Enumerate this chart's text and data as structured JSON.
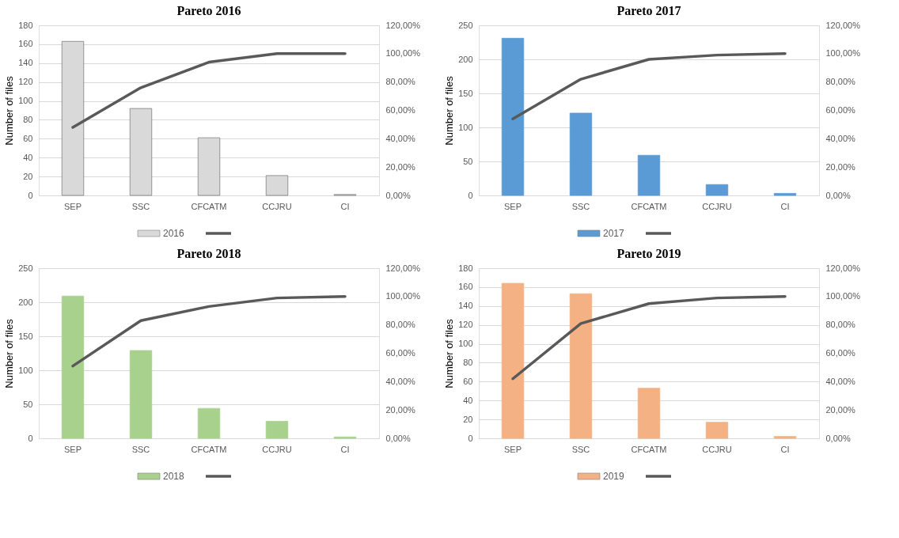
{
  "chart_data": [
    {
      "type": "bar",
      "title": "Pareto  2016",
      "ylabel": "Number of files",
      "categories": [
        "SEP",
        "SSC",
        "CFCATM",
        "CCJRU",
        "CI"
      ],
      "series": [
        {
          "name": "2016",
          "color": "#d9d9d9",
          "values": [
            163,
            92,
            61,
            21,
            1
          ]
        },
        {
          "type": "line",
          "axis": "y2",
          "color": "#595959",
          "values": [
            48,
            76,
            94,
            100,
            100
          ]
        }
      ],
      "ylim": [
        0,
        180
      ],
      "yticks": [
        0,
        20,
        40,
        60,
        80,
        100,
        120,
        140,
        160,
        180
      ],
      "y2lim": [
        0,
        120
      ],
      "y2ticks": [
        {
          "value": 0,
          "label": "0,00%"
        },
        {
          "value": 20,
          "label": "20,00%"
        },
        {
          "value": 40,
          "label": "40,00%"
        },
        {
          "value": 60,
          "label": "60,00%"
        },
        {
          "value": 80,
          "label": "80,00%"
        },
        {
          "value": 100,
          "label": "100,00%"
        },
        {
          "value": 120,
          "label": "120,00%"
        }
      ],
      "grid": "y",
      "legend": "bottom"
    },
    {
      "type": "bar",
      "title": "Pareto  2017",
      "ylabel": "Number of files",
      "categories": [
        "SEP",
        "SSC",
        "CFCATM",
        "CCJRU",
        "CI"
      ],
      "series": [
        {
          "name": "2017",
          "color": "#5b9bd5",
          "values": [
            231,
            121,
            59,
            16,
            3
          ]
        },
        {
          "type": "line",
          "axis": "y2",
          "color": "#595959",
          "values": [
            54,
            82,
            96,
            99,
            100
          ]
        }
      ],
      "ylim": [
        0,
        250
      ],
      "yticks": [
        0,
        50,
        100,
        150,
        200,
        250
      ],
      "y2lim": [
        0,
        120
      ],
      "y2ticks": [
        {
          "value": 0,
          "label": "0,00%"
        },
        {
          "value": 20,
          "label": "20,00%"
        },
        {
          "value": 40,
          "label": "40,00%"
        },
        {
          "value": 60,
          "label": "60,00%"
        },
        {
          "value": 80,
          "label": "80,00%"
        },
        {
          "value": 100,
          "label": "100,00%"
        },
        {
          "value": 120,
          "label": "120,00%"
        }
      ],
      "grid": "y",
      "legend": "bottom"
    },
    {
      "type": "bar",
      "title": "Pareto  2018",
      "ylabel": "Number of files",
      "categories": [
        "SEP",
        "SSC",
        "CFCATM",
        "CCJRU",
        "CI"
      ],
      "series": [
        {
          "name": "2018",
          "color": "#a9d18e",
          "values": [
            209,
            129,
            44,
            25,
            2
          ]
        },
        {
          "type": "line",
          "axis": "y2",
          "color": "#595959",
          "values": [
            51,
            83,
            93,
            99,
            100
          ]
        }
      ],
      "ylim": [
        0,
        250
      ],
      "yticks": [
        0,
        50,
        100,
        150,
        200,
        250
      ],
      "y2lim": [
        0,
        120
      ],
      "y2ticks": [
        {
          "value": 0,
          "label": "0,00%"
        },
        {
          "value": 20,
          "label": "20,00%"
        },
        {
          "value": 40,
          "label": "40,00%"
        },
        {
          "value": 60,
          "label": "60,00%"
        },
        {
          "value": 80,
          "label": "80,00%"
        },
        {
          "value": 100,
          "label": "100,00%"
        },
        {
          "value": 120,
          "label": "120,00%"
        }
      ],
      "grid": "y",
      "legend": "bottom"
    },
    {
      "type": "bar",
      "title": "Pareto  2019",
      "ylabel": "Number of files",
      "categories": [
        "SEP",
        "SSC",
        "CFCATM",
        "CCJRU",
        "CI"
      ],
      "series": [
        {
          "name": "2019",
          "color": "#f4b183",
          "values": [
            164,
            153,
            53,
            17,
            2
          ]
        },
        {
          "type": "line",
          "axis": "y2",
          "color": "#595959",
          "values": [
            42,
            81,
            95,
            99,
            100
          ]
        }
      ],
      "ylim": [
        0,
        180
      ],
      "yticks": [
        0,
        20,
        40,
        60,
        80,
        100,
        120,
        140,
        160,
        180
      ],
      "y2lim": [
        0,
        120
      ],
      "y2ticks": [
        {
          "value": 0,
          "label": "0,00%"
        },
        {
          "value": 20,
          "label": "20,00%"
        },
        {
          "value": 40,
          "label": "40,00%"
        },
        {
          "value": 60,
          "label": "60,00%"
        },
        {
          "value": 80,
          "label": "80,00%"
        },
        {
          "value": 100,
          "label": "100,00%"
        },
        {
          "value": 120,
          "label": "120,00%"
        }
      ],
      "grid": "y",
      "legend": "bottom"
    }
  ]
}
